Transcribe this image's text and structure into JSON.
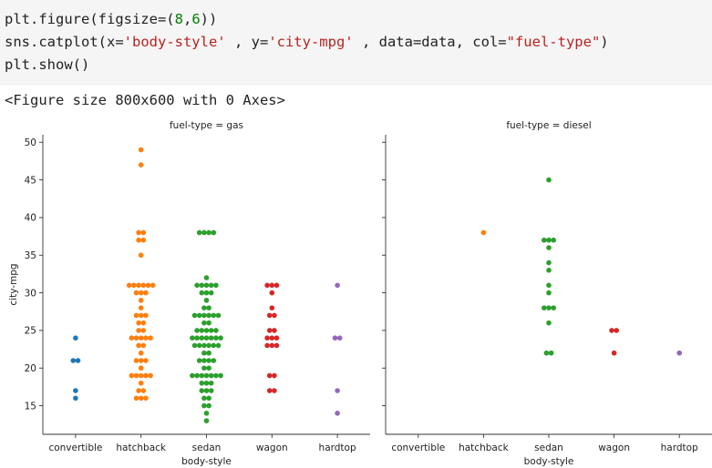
{
  "code": {
    "lines": [
      [
        {
          "t": "plain",
          "v": "plt.figure(figsize=("
        },
        {
          "t": "num",
          "v": "8"
        },
        {
          "t": "plain",
          "v": ","
        },
        {
          "t": "num",
          "v": "6"
        },
        {
          "t": "plain",
          "v": "))"
        }
      ],
      [
        {
          "t": "plain",
          "v": "sns.catplot(x="
        },
        {
          "t": "str",
          "v": "'body-style'"
        },
        {
          "t": "plain",
          "v": " , y="
        },
        {
          "t": "str",
          "v": "'city-mpg'"
        },
        {
          "t": "plain",
          "v": " , data=data, col="
        },
        {
          "t": "str",
          "v": "\"fuel-type\""
        },
        {
          "t": "plain",
          "v": ")"
        }
      ],
      [
        {
          "t": "plain",
          "v": "plt.show()"
        }
      ]
    ]
  },
  "output_text": "<Figure size 800x600 with 0 Axes>",
  "chart_data": {
    "type": "scatter",
    "ylabel": "city-mpg",
    "ylim": [
      11.2,
      51.0
    ],
    "yticks": [
      15,
      20,
      25,
      30,
      35,
      40,
      45,
      50
    ],
    "categories": [
      "convertible",
      "hatchback",
      "sedan",
      "wagon",
      "hardtop"
    ],
    "category_colors": [
      "#1f77b4",
      "#ff7f0e",
      "#2ca02c",
      "#d62728",
      "#9467bd"
    ],
    "panels": [
      {
        "title": "fuel-type = gas",
        "xlabel": "body-style",
        "points": {
          "convertible": [
            24,
            21,
            21,
            17,
            16
          ],
          "hatchback": [
            49,
            47,
            38,
            38,
            37,
            37,
            35,
            31,
            31,
            31,
            31,
            31,
            31,
            30,
            30,
            30,
            29,
            28,
            27,
            27,
            27,
            26,
            26,
            25,
            25,
            24,
            24,
            24,
            24,
            24,
            23,
            23,
            22,
            21,
            21,
            21,
            20,
            19,
            19,
            19,
            19,
            19,
            18,
            17,
            17,
            16,
            16,
            16
          ],
          "sedan": [
            38,
            38,
            38,
            38,
            32,
            31,
            31,
            31,
            31,
            31,
            30,
            30,
            30,
            29,
            28,
            28,
            27,
            27,
            27,
            27,
            27,
            27,
            26,
            26,
            25,
            25,
            25,
            25,
            25,
            24,
            24,
            24,
            24,
            24,
            24,
            24,
            23,
            23,
            23,
            23,
            23,
            23,
            22,
            22,
            21,
            21,
            21,
            21,
            20,
            20,
            19,
            19,
            19,
            19,
            19,
            19,
            19,
            18,
            18,
            18,
            17,
            17,
            17,
            16,
            16,
            15,
            15,
            14,
            13
          ],
          "wagon": [
            31,
            31,
            31,
            30,
            28,
            27,
            27,
            25,
            25,
            24,
            24,
            24,
            23,
            23,
            23,
            19,
            19,
            17,
            17
          ],
          "hardtop": [
            31,
            24,
            24,
            17,
            14
          ]
        }
      },
      {
        "title": "fuel-type = diesel",
        "xlabel": "body-style",
        "points": {
          "convertible": [],
          "hatchback": [
            38
          ],
          "sedan": [
            45,
            37,
            37,
            37,
            36,
            34,
            33,
            31,
            30,
            28,
            28,
            28,
            26,
            22,
            22
          ],
          "wagon": [
            25,
            25,
            22
          ],
          "hardtop": [
            22
          ]
        }
      }
    ]
  }
}
